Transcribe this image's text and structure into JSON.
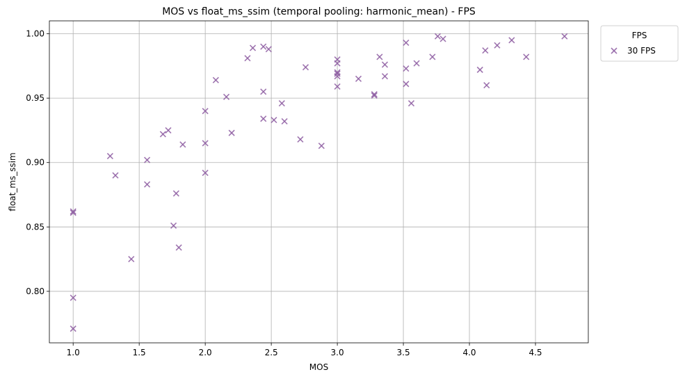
{
  "chart_data": {
    "type": "scatter",
    "title": "MOS vs float_ms_ssim (temporal pooling: harmonic_mean) - FPS",
    "xlabel": "MOS",
    "ylabel": "float_ms_ssim",
    "xlim": [
      0.82,
      4.9
    ],
    "ylim": [
      0.76,
      1.01
    ],
    "xticks": [
      1.0,
      1.5,
      2.0,
      2.5,
      3.0,
      3.5,
      4.0,
      4.5
    ],
    "xtick_labels": [
      "1.0",
      "1.5",
      "2.0",
      "2.5",
      "3.0",
      "3.5",
      "4.0",
      "4.5"
    ],
    "yticks": [
      0.8,
      0.85,
      0.9,
      0.95,
      1.0
    ],
    "ytick_labels": [
      "0.80",
      "0.85",
      "0.90",
      "0.95",
      "1.00"
    ],
    "grid": true,
    "legend": {
      "title": "FPS",
      "placement": "outside-top-right"
    },
    "marker_color": "#8e5ea2",
    "series": [
      {
        "name": "30 FPS",
        "x": [
          1.0,
          1.0,
          1.0,
          1.0,
          1.28,
          1.32,
          1.44,
          1.56,
          1.56,
          1.68,
          1.72,
          1.76,
          1.78,
          1.8,
          1.83,
          2.0,
          2.0,
          2.0,
          2.08,
          2.16,
          2.2,
          2.32,
          2.36,
          2.44,
          2.44,
          2.44,
          2.48,
          2.52,
          2.58,
          2.6,
          2.72,
          2.76,
          2.88,
          3.0,
          3.0,
          3.0,
          3.0,
          3.0,
          3.0,
          3.16,
          3.28,
          3.28,
          3.32,
          3.36,
          3.36,
          3.52,
          3.52,
          3.52,
          3.56,
          3.6,
          3.72,
          3.76,
          3.8,
          4.08,
          4.12,
          4.13,
          4.21,
          4.32,
          4.43,
          4.72
        ],
        "y": [
          0.862,
          0.861,
          0.795,
          0.771,
          0.905,
          0.89,
          0.825,
          0.902,
          0.883,
          0.922,
          0.925,
          0.851,
          0.876,
          0.834,
          0.914,
          0.94,
          0.915,
          0.892,
          0.964,
          0.951,
          0.923,
          0.981,
          0.989,
          0.99,
          0.955,
          0.934,
          0.988,
          0.933,
          0.946,
          0.932,
          0.918,
          0.974,
          0.913,
          0.98,
          0.977,
          0.97,
          0.969,
          0.967,
          0.959,
          0.965,
          0.953,
          0.952,
          0.982,
          0.976,
          0.967,
          0.993,
          0.973,
          0.961,
          0.946,
          0.977,
          0.982,
          0.998,
          0.996,
          0.972,
          0.987,
          0.96,
          0.991,
          0.995,
          0.982,
          0.998
        ]
      }
    ]
  }
}
